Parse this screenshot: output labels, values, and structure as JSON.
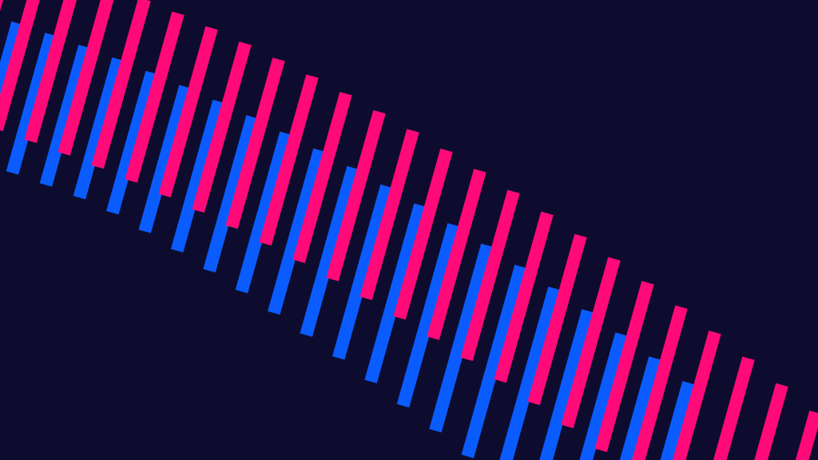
{
  "artwork": {
    "background_color": "#0e0c2e",
    "stripe_colors": {
      "pink": "#ff0a78",
      "blue": "#0a5cff"
    }
  }
}
